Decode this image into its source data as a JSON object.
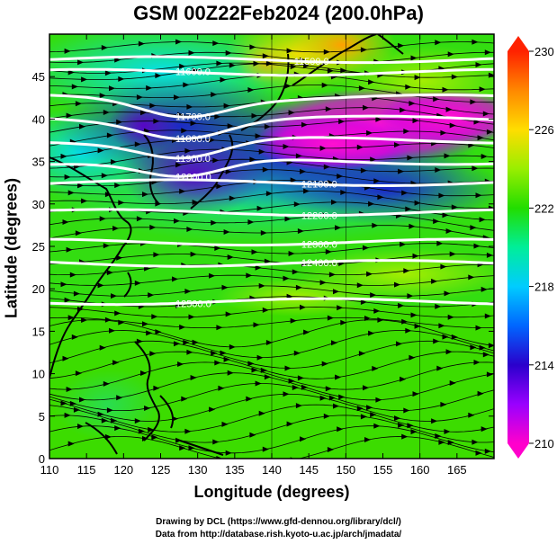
{
  "title": "GSM 00Z22Feb2024 (200.0hPa)",
  "x_axis": {
    "label": "Longitude (degrees)",
    "ticks": [
      "110",
      "115",
      "120",
      "125",
      "130",
      "135",
      "140",
      "145",
      "150",
      "155",
      "160",
      "165"
    ],
    "range": [
      110,
      170
    ]
  },
  "y_axis": {
    "label": "Latitude  (degrees)",
    "ticks": [
      "0",
      "5",
      "10",
      "15",
      "20",
      "25",
      "30",
      "35",
      "40",
      "45"
    ],
    "range": [
      0,
      50
    ]
  },
  "colorbar": {
    "ticks": [
      "210",
      "214",
      "218",
      "222",
      "226",
      "230"
    ],
    "min": 210,
    "max": 230,
    "colors": [
      "#ff00cc",
      "#9900ff",
      "#2a00cc",
      "#0066ff",
      "#00ccff",
      "#00ee99",
      "#22dd00",
      "#99ee00",
      "#ffdd00",
      "#ff8800",
      "#ff2200"
    ]
  },
  "contours": [
    {
      "label": "11500.0",
      "lat": 47
    },
    {
      "label": "11600.0",
      "lat": 45.5
    },
    {
      "label": "11700.0",
      "lat": 42.5
    },
    {
      "label": "11800.0",
      "lat": 40
    },
    {
      "label": "11900.0",
      "lat": 37.5
    },
    {
      "label": "12000.0",
      "lat": 35
    },
    {
      "label": "12100.0",
      "lat": 32.5
    },
    {
      "label": "12200.0",
      "lat": 29
    },
    {
      "label": "12300.0",
      "lat": 25.5
    },
    {
      "label": "12400.0",
      "lat": 23
    },
    {
      "label": "12500.0",
      "lat": 18.5
    }
  ],
  "credits": [
    "Drawing by DCL (https://www.gfd-dennou.org/library/dcl/)",
    "Data from http://database.rish.kyoto-u.ac.jp/arch/jmadata/"
  ]
}
